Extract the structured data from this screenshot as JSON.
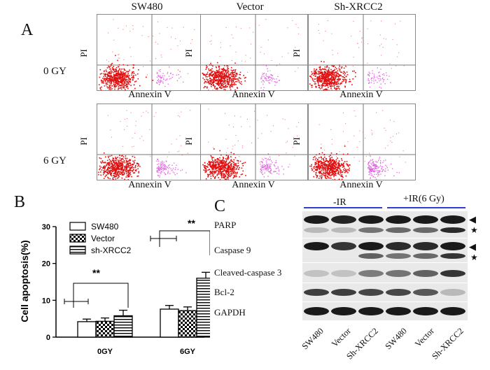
{
  "panel_a": {
    "letter": "A",
    "column_titles": [
      "SW480",
      "Vector",
      "Sh-XRCC2"
    ],
    "row_titles": [
      "0 GY",
      "6 GY"
    ],
    "y_axis_label": "PI",
    "x_axis_label": "Annexin V"
  },
  "panel_b": {
    "letter": "B",
    "significance": [
      "**",
      "**"
    ]
  },
  "chart_data": {
    "type": "bar",
    "ylabel": "Cell apoptosis(%)",
    "xlabel": "",
    "categories": [
      "0GY",
      "6GY"
    ],
    "ylim": [
      0,
      30
    ],
    "yticks": [
      0,
      10,
      20,
      30
    ],
    "series": [
      {
        "name": "SW480",
        "values": [
          4.2,
          7.6
        ],
        "errors": [
          0.7,
          1.0
        ]
      },
      {
        "name": "Vector",
        "values": [
          4.3,
          7.2
        ],
        "errors": [
          0.9,
          1.0
        ]
      },
      {
        "name": "sh-XRCC2",
        "values": [
          5.8,
          16.0
        ],
        "errors": [
          1.5,
          1.6
        ]
      }
    ],
    "legend_position": "top-left"
  },
  "panel_c": {
    "letter": "C",
    "groups": [
      "-IR",
      "+IR(6 Gy)"
    ],
    "rows": [
      "PARP",
      "Caspase 9",
      "Cleaved-caspase 3",
      "Bcl-2",
      "GAPDH"
    ],
    "lanes": [
      "SW480",
      "Vector",
      "Sh-XRCC2",
      "SW480",
      "Vector",
      "Sh-XRCC2"
    ],
    "markers": {
      "full_length": "◀",
      "cleaved": "★"
    },
    "group_line_color": "#2f3fd0"
  }
}
